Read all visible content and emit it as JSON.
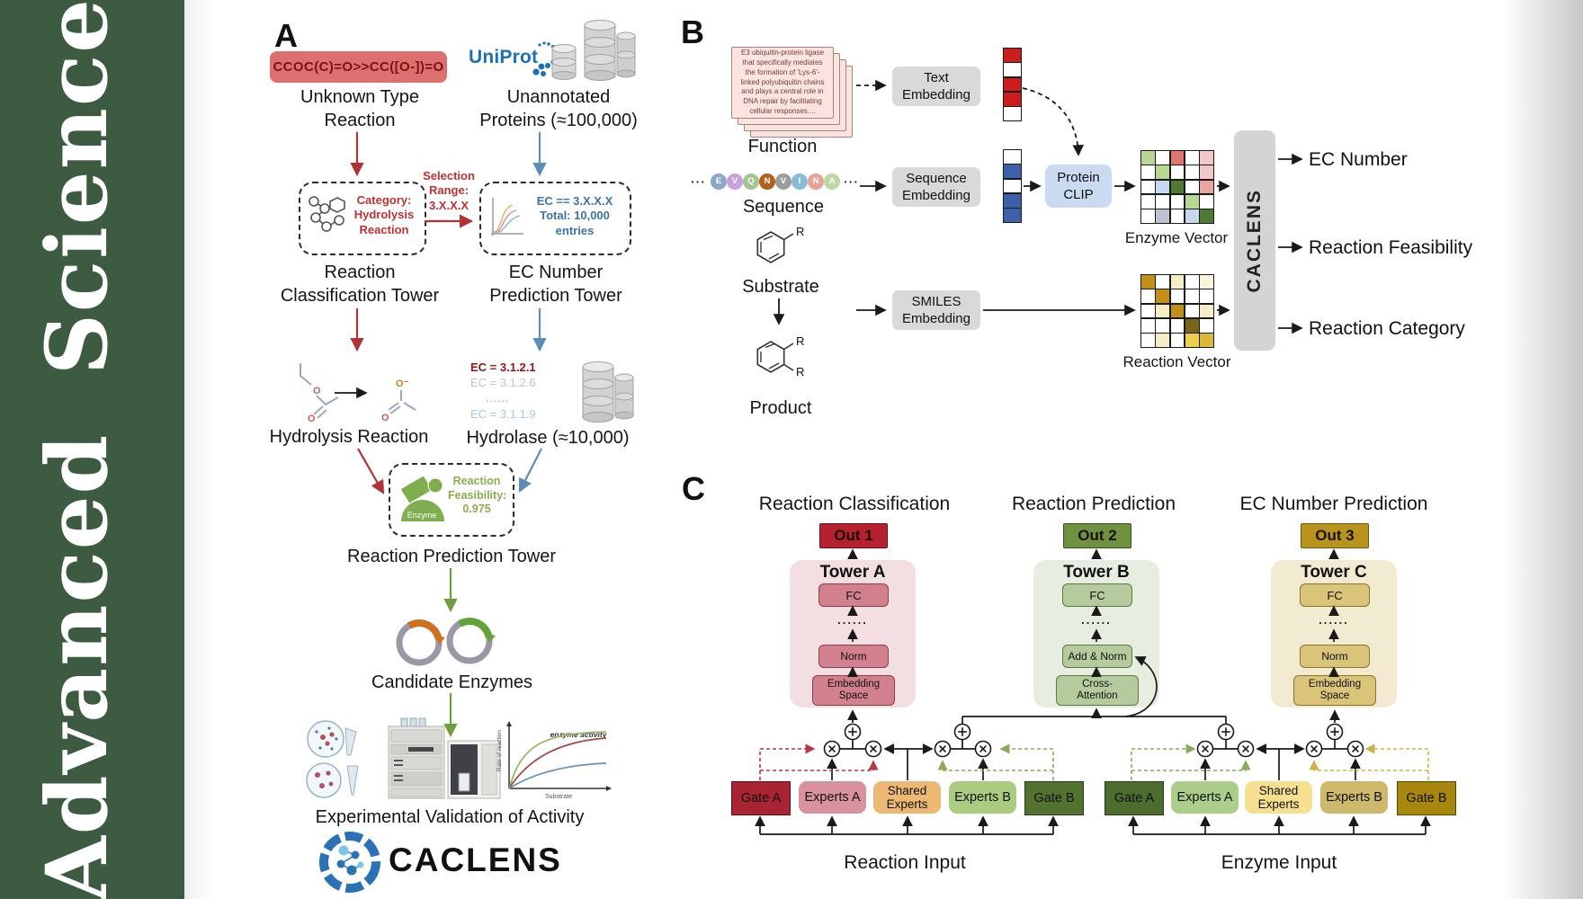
{
  "journal": {
    "name": "Advanced Science"
  },
  "colors": {
    "sidebar_green": "#3d5b40",
    "red_accent": "#b03434",
    "blue_accent": "#5b8db8",
    "green_accent": "#6f9e3f",
    "uniprot_blue": "#1d6fb8"
  },
  "panel_a": {
    "label": "A",
    "smiles": "CCOC(C)=O>>CC([O-])=O",
    "unknown_reaction": "Unknown Type\nReaction",
    "uniprot": "UniProt",
    "unannotated": "Unannotated\nProteins (≈100,000)",
    "classification_box": "Category:\nHydrolysis\nReaction",
    "selection": "Selection\nRange:\n3.X.X.X",
    "ec_box": "EC == 3.X.X.X\nTotal: 10,000\nentries",
    "tower1": "Reaction\nClassification Tower",
    "tower2": "EC Number\nPrediction Tower",
    "hydrolysis": "Hydrolysis Reaction",
    "ec_list": [
      "EC = 3.1.2.1",
      "EC = 3.1.2.6",
      "......",
      "EC = 3.1.1.9"
    ],
    "hydrolase": "Hydrolase (≈10,000)",
    "enzyme_label": "Enzyme",
    "feasibility": "Reaction\nFeasibility:\n0.975",
    "tower3": "Reaction Prediction Tower",
    "candidates": "Candidate Enzymes",
    "validation": "Experimental Validation of Activity",
    "logo_text": "CACLENS",
    "mini_chart": {
      "title": "enzyme activity",
      "ylabel": "Rate of reaction",
      "xlabel": "Substrate"
    }
  },
  "panel_b": {
    "label": "B",
    "function_card": "E3 ubiquitin-protein ligase that specifically mediates the formation of 'Lys-6'-linked polyubiquitin chains and plays a central role in DNA repair by facilitating cellular responses....",
    "function": "Function",
    "sequence": "Sequence",
    "ellipsis": "···",
    "residues": [
      {
        "t": "E",
        "c": "#8ba6c8"
      },
      {
        "t": "V",
        "c": "#c8a2dc"
      },
      {
        "t": "Q",
        "c": "#a3c591"
      },
      {
        "t": "N",
        "c": "#b2611c"
      },
      {
        "t": "V",
        "c": "#9d9d9d"
      },
      {
        "t": "I",
        "c": "#8abbd8"
      },
      {
        "t": "N",
        "c": "#e6a294"
      },
      {
        "t": "A",
        "c": "#bdd8a3"
      }
    ],
    "text_embedding": "Text\nEmbedding",
    "sequence_embedding": "Sequence\nEmbedding",
    "smiles_embedding": "SMILES\nEmbedding",
    "protein_clip": "Protein\nCLIP",
    "substrate": "Substrate",
    "product": "Product",
    "r_label": "R",
    "enzyme_vector_label": "Enzyme Vector",
    "reaction_vector_label": "Reaction Vector",
    "caclens": "CACLENS",
    "outputs": [
      "EC Number",
      "Reaction Feasibility",
      "Reaction Category"
    ],
    "text_vector": [
      "#cc1d1d",
      "#ffffff",
      "#cc1d1d",
      "#cc1d1d",
      "#ffffff"
    ],
    "seq_vector": [
      "#ffffff",
      "#3c60aa",
      "#ffffff",
      "#3c60aa",
      "#3c60aa"
    ],
    "enzyme_matrix": [
      "#b8d694",
      "#ffffff",
      "#e0766f",
      "#ffffff",
      "#f3c8ca",
      "#ffffff",
      "#b8d694",
      "#ffffff",
      "#ffffff",
      "#f3c8ca",
      "#ffffff",
      "#c6d9ee",
      "#4f7a33",
      "#ffffff",
      "#eda4a0",
      "#ffffff",
      "#ffffff",
      "#ffffff",
      "#b8d694",
      "#ffffff",
      "#ffffff",
      "#b9c3d2",
      "#ffffff",
      "#c6d9ee",
      "#4f7a33"
    ],
    "reaction_matrix": [
      "#c29018",
      "#ffffff",
      "#f6ecc6",
      "#ffffff",
      "#faf4dc",
      "#ffffff",
      "#c29018",
      "#ffffff",
      "#ffffff",
      "#ffffff",
      "#ffffff",
      "#f6ecc6",
      "#c29018",
      "#ffffff",
      "#f6ecc6",
      "#ffffff",
      "#ffffff",
      "#ffffff",
      "#79651a",
      "#ffffff",
      "#ffffff",
      "#f6ecc6",
      "#ffffff",
      "#ecd049",
      "#d9b83a"
    ]
  },
  "panel_c": {
    "label": "C",
    "columns": [
      {
        "title": "Reaction Classification",
        "out": "Out 1",
        "tower": "Tower A"
      },
      {
        "title": "Reaction Prediction",
        "out": "Out 2",
        "tower": "Tower B"
      },
      {
        "title": "EC Number Prediction",
        "out": "Out 3",
        "tower": "Tower C"
      }
    ],
    "fc": "FC",
    "dots": "......",
    "norm": "Norm",
    "add_norm": "Add & Norm",
    "cross_attention": "Cross-\nAttention",
    "embedding_space": "Embedding\nSpace",
    "moe": {
      "gate_a": "Gate A",
      "experts_a": "Experts A",
      "shared": "Shared\nExperts",
      "experts_b": "Experts B",
      "gate_b": "Gate B"
    },
    "inputs": {
      "reaction": "Reaction Input",
      "enzyme": "Enzyme Input"
    }
  }
}
